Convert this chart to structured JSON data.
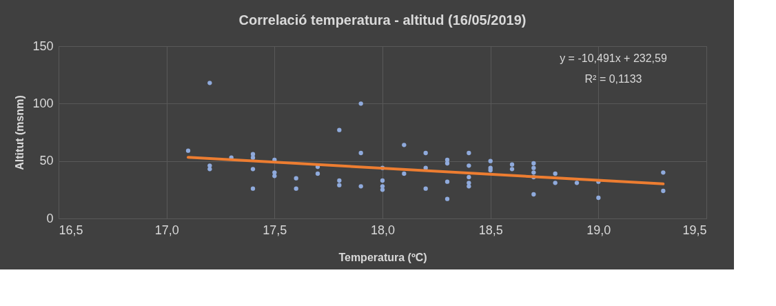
{
  "chart_data": {
    "type": "scatter",
    "title": "Correlació temperatura - altitud (16/05/2019)",
    "xlabel": "Temperatura (ºC)",
    "ylabel": "Altitut (msnm)",
    "annotations": [
      "y = -10,491x + 232,59",
      "R² = 0,1133"
    ],
    "xlim": [
      16.5,
      19.5
    ],
    "ylim": [
      0,
      150
    ],
    "xticks": [
      {
        "value": 16.5,
        "label": "16,5"
      },
      {
        "value": 17.0,
        "label": "17,0"
      },
      {
        "value": 17.5,
        "label": "17,5"
      },
      {
        "value": 18.0,
        "label": "18,0"
      },
      {
        "value": 18.5,
        "label": "18,5"
      },
      {
        "value": 19.0,
        "label": "19,0"
      },
      {
        "value": 19.5,
        "label": "19,5"
      }
    ],
    "yticks": [
      0,
      50,
      100,
      150
    ],
    "grid": true,
    "legend": false,
    "series": [
      {
        "type": "scatter",
        "marker": "circle",
        "color": "#8faadc",
        "x": [
          17.1,
          17.2,
          17.2,
          17.2,
          17.3,
          17.4,
          17.4,
          17.4,
          17.4,
          17.5,
          17.5,
          17.5,
          17.6,
          17.6,
          17.7,
          17.7,
          17.8,
          17.8,
          17.8,
          17.9,
          17.9,
          17.9,
          18.0,
          18.0,
          18.0,
          18.0,
          18.1,
          18.1,
          18.2,
          18.2,
          18.2,
          18.3,
          18.3,
          18.3,
          18.3,
          18.4,
          18.4,
          18.4,
          18.4,
          18.4,
          18.5,
          18.5,
          18.5,
          18.6,
          18.6,
          18.7,
          18.7,
          18.7,
          18.7,
          18.7,
          18.8,
          18.8,
          18.9,
          19.0,
          19.0,
          19.3,
          19.3
        ],
        "values": [
          59,
          118,
          46,
          43,
          53,
          56,
          53,
          43,
          26,
          51,
          40,
          37,
          35,
          26,
          45,
          39,
          77,
          33,
          29,
          100,
          57,
          28,
          44,
          33,
          28,
          25,
          64,
          39,
          57,
          44,
          26,
          51,
          48,
          32,
          17,
          57,
          46,
          36,
          31,
          28,
          50,
          44,
          42,
          47,
          43,
          48,
          44,
          40,
          36,
          21,
          39,
          31,
          31,
          32,
          18,
          40,
          24
        ]
      },
      {
        "type": "line",
        "color": "#ed7d31",
        "x": [
          17.1,
          19.3
        ],
        "values": [
          53.2,
          30.1
        ]
      }
    ]
  }
}
